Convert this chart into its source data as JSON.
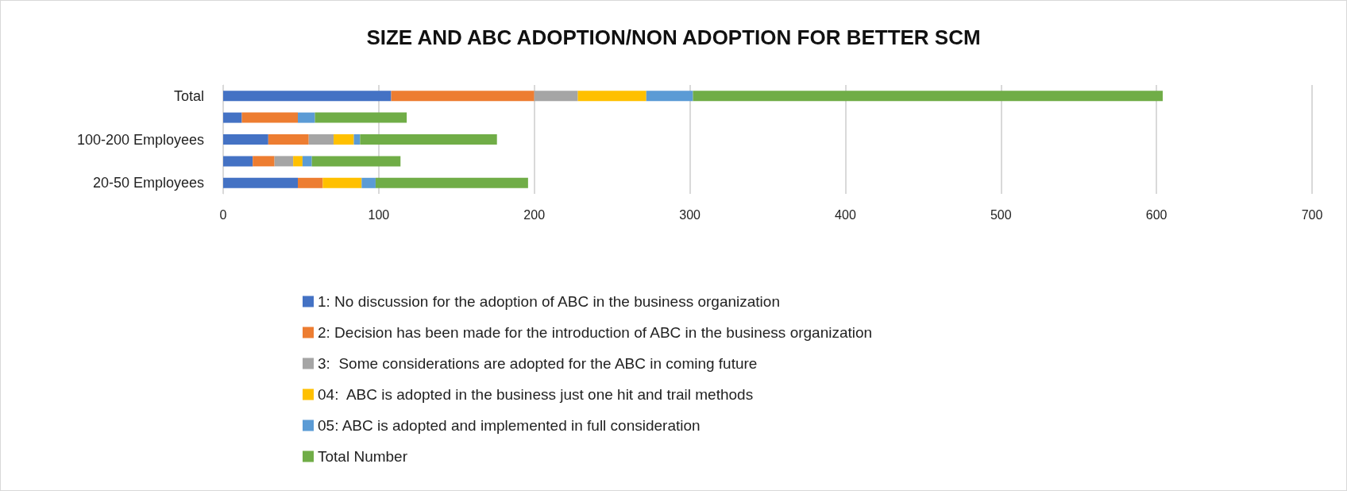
{
  "chart_data": {
    "type": "bar",
    "orientation": "horizontal",
    "stacked": true,
    "title": "SIZE AND ABC ADOPTION/NON ADOPTION FOR BETTER SCM",
    "categories": [
      "Total",
      null,
      "100-200 Employees",
      null,
      "20-50 Employees"
    ],
    "series": [
      {
        "name": "1: No discussion for the adoption of ABC in the business organization",
        "color": "#4472c4",
        "values": [
          108,
          12,
          29,
          19,
          48
        ]
      },
      {
        "name": "2: Decision has been made for the introduction of ABC in the business organization",
        "color": "#ed7d31",
        "values": [
          92,
          36,
          26,
          14,
          16
        ]
      },
      {
        "name": "3:  Some considerations are adopted for the ABC in coming future",
        "color": "#a5a5a5",
        "values": [
          28,
          0,
          16,
          12,
          0
        ]
      },
      {
        "name": "04:  ABC is adopted in the business just one hit and trail methods",
        "color": "#ffc000",
        "values": [
          44,
          0,
          13,
          6,
          25
        ]
      },
      {
        "name": "05: ABC is adopted and implemented in full consideration",
        "color": "#5b9bd5",
        "values": [
          30,
          11,
          4,
          6,
          9
        ]
      },
      {
        "name": "Total Number",
        "color": "#70ad47",
        "values": [
          302,
          59,
          88,
          57,
          98
        ]
      }
    ],
    "xlim": [
      0,
      700
    ],
    "xticks": [
      0,
      100,
      200,
      300,
      400,
      500,
      600,
      700
    ],
    "grid": "x",
    "legend": "bottom"
  }
}
